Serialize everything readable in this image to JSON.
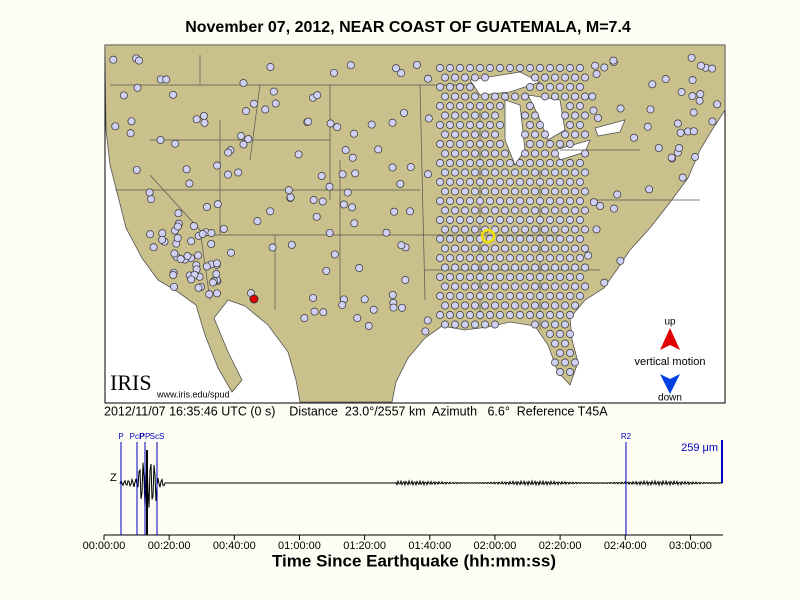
{
  "title": "November 07, 2012, NEAR COAST OF GUATEMALA, M=7.4",
  "map": {
    "logo": "IRIS",
    "credit": "www.iris.edu/spud",
    "legend": {
      "up": "up",
      "label": "vertical motion",
      "down": "down"
    }
  },
  "event_info": "2012/11/07 16:35:46 UTC (0 s)    Distance  23.0°/2557 km  Azimuth   6.6°  Reference T45A",
  "seismogram": {
    "channel": "Z",
    "amplitude": "259 μm",
    "xlim": [
      0,
      11400
    ],
    "xticks": [
      {
        "value": 0,
        "label": "00:00:00"
      },
      {
        "value": 1200,
        "label": "00:20:00"
      },
      {
        "value": 2400,
        "label": "00:40:00"
      },
      {
        "value": 3600,
        "label": "01:00:00"
      },
      {
        "value": 4800,
        "label": "01:20:00"
      },
      {
        "value": 6000,
        "label": "01:40:00"
      },
      {
        "value": 7200,
        "label": "02:00:00"
      },
      {
        "value": 8400,
        "label": "02:20:00"
      },
      {
        "value": 9600,
        "label": "02:40:00"
      },
      {
        "value": 10800,
        "label": "03:00:00"
      }
    ],
    "xlabel": "Time Since Earthquake (hh:mm:ss)",
    "phases": [
      {
        "name": "P",
        "time": 313
      },
      {
        "name": "PcP",
        "time": 608
      },
      {
        "name": "PP",
        "time": 755
      },
      {
        "name": "ScS",
        "time": 976
      },
      {
        "name": "R2",
        "time": 9613
      }
    ]
  }
}
